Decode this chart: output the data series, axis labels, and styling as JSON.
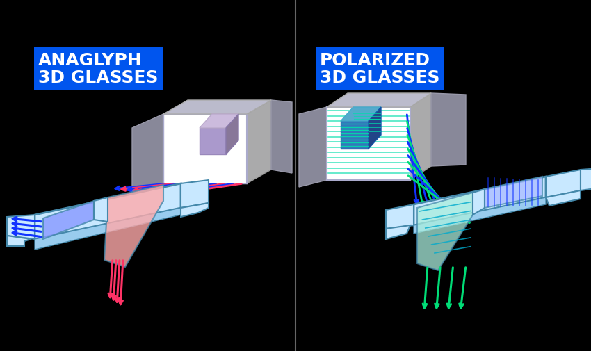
{
  "bg_color": "#000000",
  "title_left": "ANAGLYPH\n3D GLASSES",
  "title_right": "POLARIZED\n3D GLASSES",
  "title_bg": "#0055ee",
  "title_color": "#ffffff",
  "divider_color": "#666666",
  "glass_frame_color": "#c8e8ff",
  "glass_frame_edge": "#88bbdd",
  "glass_frame_dark": "#4488aa",
  "left_lens_anaglyph": "#8899ff",
  "right_lens_anaglyph": "#ffaaaa",
  "left_lens_polar": "#aaeedd",
  "right_lens_polar": "#aabbff",
  "screen_white": "#ffffff",
  "screen_gray": "#999aaa",
  "screen_side": "#777888",
  "arrow_blue": "#1133ff",
  "arrow_pink": "#ff3366",
  "arrow_green": "#00dd77",
  "cube_anaglyph_front": "#aa99cc",
  "cube_anaglyph_top": "#ccbbdd",
  "cube_anaglyph_side": "#887799",
  "cube_polar_front": "#3377bb",
  "cube_polar_top": "#55aacc",
  "cube_polar_side": "#224488",
  "polar_line_color": "#00ddaa",
  "polar_lens_line": "#00aacc"
}
